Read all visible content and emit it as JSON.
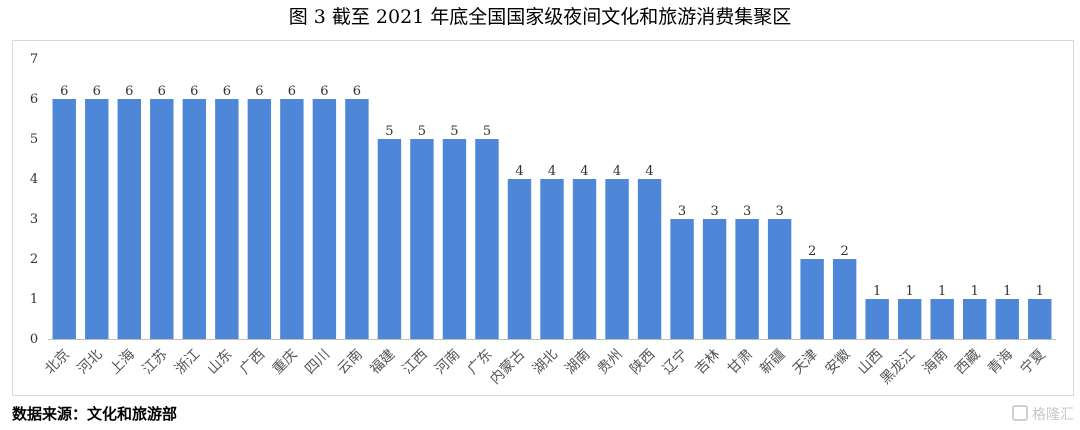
{
  "title": "图 3  截至 2021 年底全国国家级夜间文化和旅游消费集聚区",
  "source": "数据来源：文化和旅游部",
  "watermark": "格隆汇",
  "colors": {
    "bar": "#4e86d8",
    "grid": "#d9d9d9",
    "text": "#333333"
  },
  "chart_data": {
    "type": "bar",
    "title": "图 3  截至 2021 年底全国国家级夜间文化和旅游消费集聚区",
    "xlabel": "",
    "ylabel": "",
    "ylim": [
      0,
      7
    ],
    "yticks": [
      0,
      1,
      2,
      3,
      4,
      5,
      6,
      7
    ],
    "grid": false,
    "categories": [
      "北京",
      "河北",
      "上海",
      "江苏",
      "浙江",
      "山东",
      "广西",
      "重庆",
      "四川",
      "云南",
      "福建",
      "江西",
      "河南",
      "广东",
      "内蒙古",
      "湖北",
      "湖南",
      "贵州",
      "陕西",
      "辽宁",
      "吉林",
      "甘肃",
      "新疆",
      "天津",
      "安徽",
      "山西",
      "黑龙江",
      "海南",
      "西藏",
      "青海",
      "宁夏"
    ],
    "values": [
      6,
      6,
      6,
      6,
      6,
      6,
      6,
      6,
      6,
      6,
      5,
      5,
      5,
      5,
      4,
      4,
      4,
      4,
      4,
      3,
      3,
      3,
      3,
      2,
      2,
      1,
      1,
      1,
      1,
      1,
      1
    ]
  }
}
